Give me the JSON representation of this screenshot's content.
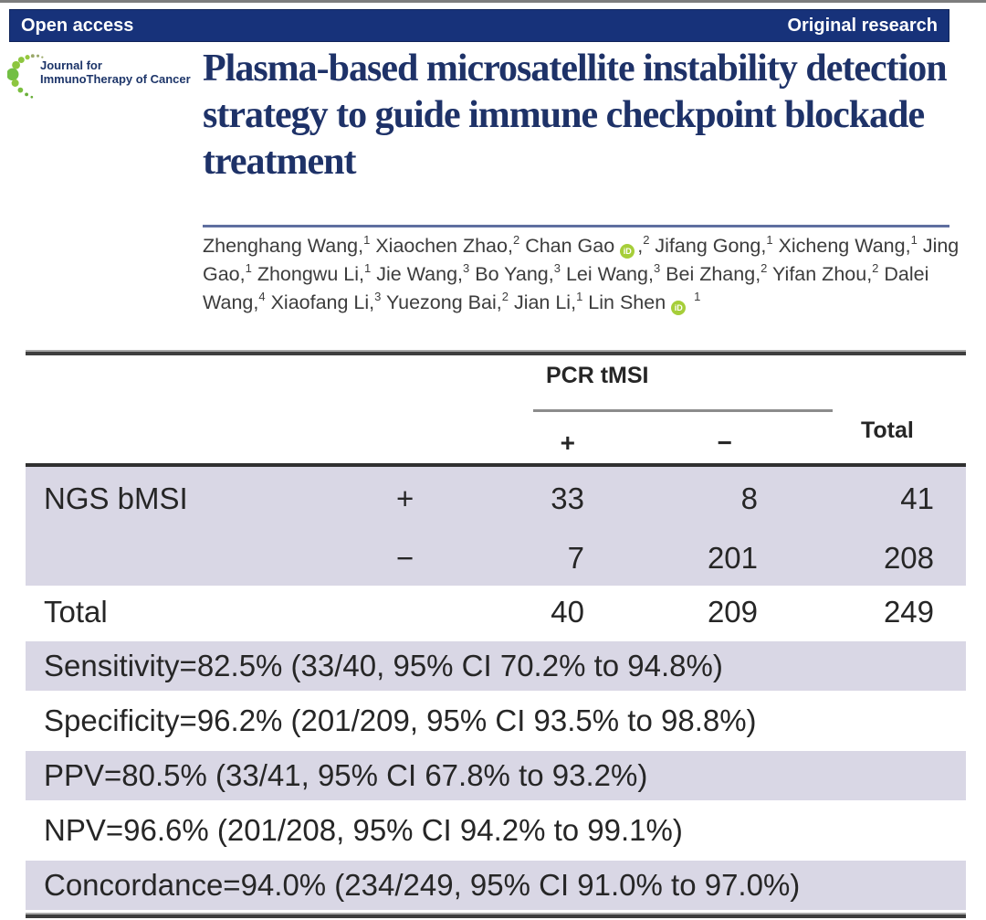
{
  "banner": {
    "left_label": "Open access",
    "right_label": "Original research"
  },
  "journal": {
    "name_line1": "Journal for",
    "name_line2": "ImmunoTherapy of Cancer"
  },
  "article": {
    "title": "Plasma-based microsatellite instability detection strategy to guide immune checkpoint blockade treatment",
    "authors": [
      {
        "name": "Zhenghang Wang",
        "affiliation": "1"
      },
      {
        "name": "Xiaochen Zhao",
        "affiliation": "2"
      },
      {
        "name": "Chan Gao",
        "affiliation": "2",
        "orcid": true
      },
      {
        "name": "Jifang Gong",
        "affiliation": "1"
      },
      {
        "name": "Xicheng Wang",
        "affiliation": "1"
      },
      {
        "name": "Jing Gao",
        "affiliation": "1"
      },
      {
        "name": "Zhongwu Li",
        "affiliation": "1"
      },
      {
        "name": "Jie Wang",
        "affiliation": "3"
      },
      {
        "name": "Bo Yang",
        "affiliation": "3"
      },
      {
        "name": "Lei Wang",
        "affiliation": "3"
      },
      {
        "name": "Bei Zhang",
        "affiliation": "2"
      },
      {
        "name": "Yifan Zhou",
        "affiliation": "2"
      },
      {
        "name": "Dalei Wang",
        "affiliation": "4"
      },
      {
        "name": "Xiaofang Li",
        "affiliation": "3"
      },
      {
        "name": "Yuezong Bai",
        "affiliation": "2"
      },
      {
        "name": "Jian Li",
        "affiliation": "1"
      },
      {
        "name": "Lin Shen",
        "affiliation": "1",
        "orcid": true
      }
    ]
  },
  "icons": {
    "orcid_label": "iD"
  },
  "table": {
    "header": {
      "group": "PCR tMSI",
      "plus": "+",
      "minus": "−",
      "total": "Total"
    },
    "rows": [
      {
        "label": "NGS bMSI",
        "sign": "+",
        "pcr_plus": "33",
        "pcr_minus": "8",
        "total": "41"
      },
      {
        "label": "",
        "sign": "−",
        "pcr_plus": "7",
        "pcr_minus": "201",
        "total": "208"
      },
      {
        "label": "Total",
        "sign": "",
        "pcr_plus": "40",
        "pcr_minus": "209",
        "total": "249"
      }
    ],
    "stats": [
      "Sensitivity=82.5% (33/40, 95% CI 70.2% to 94.8%)",
      "Specificity=96.2% (201/209, 95% CI 93.5% to 98.8%)",
      "PPV=80.5% (33/41, 95% CI 67.8% to 93.2%)",
      "NPV=96.6% (201/208, 95% CI 94.2% to 99.1%)",
      "Concordance=94.0% (234/249, 95% CI 91.0% to 97.0%)"
    ]
  },
  "colors": {
    "banner_navy": "#17327a",
    "title_navy": "#1e3268",
    "row_lavender": "#d9d7e5",
    "orcid_green": "#a6ce39",
    "logo_green": "#8dc63f",
    "rule_dark": "#3e3e3e"
  }
}
